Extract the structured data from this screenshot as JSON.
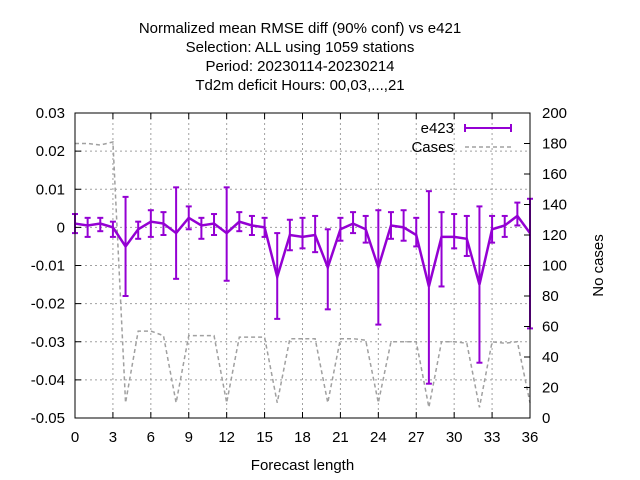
{
  "title_lines": [
    "Normalized mean RMSE diff (90% conf) vs e421",
    "Selection: ALL using  1059 stations",
    "Period: 20230114-20230214",
    "Td2m deficit   Hours:  00,03,...,21"
  ],
  "chart_data": {
    "type": "line",
    "xlabel": "Forecast length",
    "ylabel": "",
    "y2label": "No cases",
    "xlim": [
      0,
      36
    ],
    "ylim": [
      -0.05,
      0.03
    ],
    "y2lim": [
      0,
      200
    ],
    "x_ticks": [
      0,
      3,
      6,
      9,
      12,
      15,
      18,
      21,
      24,
      27,
      30,
      33,
      36
    ],
    "y_ticks": [
      "0.03",
      "0.02",
      "0.01",
      "0",
      "-0.01",
      "-0.02",
      "-0.03",
      "-0.04",
      "-0.05"
    ],
    "y_tick_values": [
      0.03,
      0.02,
      0.01,
      0,
      -0.01,
      -0.02,
      -0.03,
      -0.04,
      -0.05
    ],
    "y2_ticks": [
      0,
      20,
      40,
      60,
      80,
      100,
      120,
      140,
      160,
      180,
      200
    ],
    "grid": true,
    "legend": "top-right",
    "colors": {
      "e423": "#9400d3",
      "cases": "#a0a0a0"
    },
    "series": [
      {
        "name": "e423",
        "axis": "left",
        "style": "line-errorbars",
        "x": [
          0,
          1,
          2,
          3,
          4,
          5,
          6,
          7,
          8,
          9,
          10,
          11,
          12,
          13,
          14,
          15,
          16,
          17,
          18,
          19,
          20,
          21,
          22,
          23,
          24,
          25,
          26,
          27,
          28,
          29,
          30,
          31,
          32,
          33,
          34,
          35,
          36
        ],
        "values": [
          0.001,
          0.0005,
          0.001,
          0.0,
          -0.005,
          -0.0005,
          0.0015,
          0.001,
          -0.0015,
          0.0025,
          0.0005,
          0.001,
          -0.0015,
          0.0015,
          0.0005,
          0.0,
          -0.013,
          -0.002,
          -0.0025,
          -0.002,
          -0.0105,
          -0.0005,
          0.001,
          -0.0005,
          -0.0105,
          0.0005,
          0.0,
          -0.002,
          -0.0155,
          -0.0025,
          -0.0025,
          -0.003,
          -0.015,
          -0.0005,
          0.0005,
          0.003,
          -0.0015
        ],
        "err_low": [
          -0.0015,
          -0.0025,
          -0.001,
          -0.0025,
          -0.018,
          -0.003,
          -0.0025,
          -0.002,
          -0.0135,
          -0.0005,
          -0.003,
          -0.002,
          -0.014,
          -0.001,
          -0.002,
          -0.0025,
          -0.024,
          -0.006,
          -0.0055,
          -0.0065,
          -0.0215,
          -0.0035,
          -0.0015,
          -0.004,
          -0.0255,
          -0.003,
          -0.0035,
          -0.005,
          -0.041,
          -0.0155,
          -0.0055,
          -0.0075,
          -0.0355,
          -0.004,
          -0.0025,
          0.0005,
          -0.0265
        ],
        "err_high": [
          0.0035,
          0.0025,
          0.0025,
          0.0015,
          0.008,
          0.0015,
          0.0045,
          0.004,
          0.0105,
          0.0055,
          0.0025,
          0.0035,
          0.0105,
          0.004,
          0.003,
          0.0025,
          -0.0015,
          0.002,
          0.0025,
          0.003,
          -0.0005,
          0.0025,
          0.004,
          0.003,
          0.0045,
          0.004,
          0.0045,
          0.0025,
          0.0095,
          0.004,
          0.0035,
          0.003,
          0.0055,
          0.003,
          0.003,
          0.0065,
          0.0075
        ]
      },
      {
        "name": "Cases",
        "axis": "right",
        "style": "dashed",
        "x": [
          0,
          1,
          2,
          3,
          4,
          5,
          6,
          7,
          8,
          9,
          10,
          11,
          12,
          13,
          14,
          15,
          16,
          17,
          18,
          19,
          20,
          21,
          22,
          23,
          24,
          25,
          26,
          27,
          28,
          29,
          30,
          31,
          32,
          33,
          34,
          35,
          36
        ],
        "values": [
          180,
          180,
          179,
          181,
          10,
          57,
          57,
          54,
          10,
          54,
          54,
          54,
          10,
          53,
          53,
          53,
          10,
          52,
          52,
          52,
          10,
          52,
          52,
          51,
          10,
          50,
          50,
          50,
          7,
          50,
          50,
          49,
          7,
          50,
          49,
          50,
          10
        ]
      }
    ]
  }
}
